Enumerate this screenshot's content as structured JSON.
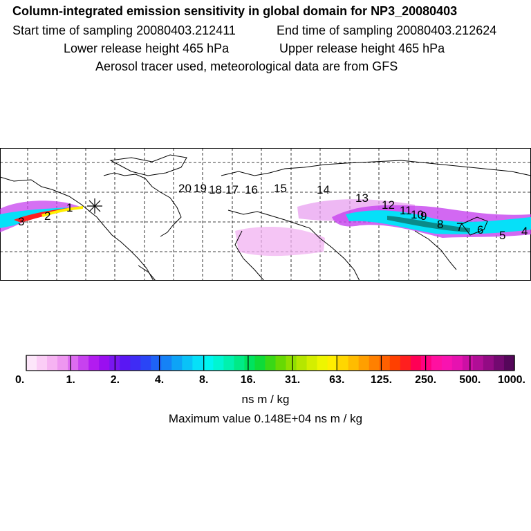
{
  "header": {
    "title": "Column-integrated emission sensitivity in global domain for NP3_20080403",
    "start_time": "Start time of sampling 20080403.212411",
    "end_time": "End time of sampling 20080403.212624",
    "lower_release": "Lower release height  465 hPa",
    "upper_release": "Upper release height  465 hPa",
    "aerosol_info": "Aerosol tracer used, meteorological data are from GFS"
  },
  "map": {
    "release_marker": "release-point-asterisk",
    "day_labels": [
      "1",
      "2",
      "3",
      "4",
      "5",
      "6",
      "7",
      "8",
      "9",
      "10",
      "11",
      "12",
      "13",
      "14",
      "15",
      "16",
      "17",
      "18",
      "19",
      "20"
    ]
  },
  "colorbar": {
    "tick_labels": [
      "0.",
      "1.",
      "2.",
      "4.",
      "8.",
      "16.",
      "31.",
      "63.",
      "125.",
      "250.",
      "500.",
      "1000."
    ],
    "colors": [
      "#fde6fa",
      "#fbcdf6",
      "#f6b3f2",
      "#ee97f0",
      "#dd6cf0",
      "#c742ef",
      "#b21cf0",
      "#9a0ff0",
      "#7a16f0",
      "#5a17f3",
      "#3f2cf5",
      "#2a45f6",
      "#1e63f6",
      "#1582f6",
      "#0ea3f6",
      "#0ac2f7",
      "#06e0f8",
      "#00f5f1",
      "#00f5d2",
      "#00f1ae",
      "#00ea87",
      "#00e35e",
      "#0edb38",
      "#39d816",
      "#67d903",
      "#90df00",
      "#b5e600",
      "#d4ee00",
      "#eef500",
      "#ffee00",
      "#ffd700",
      "#ffbc00",
      "#ff9f00",
      "#ff8000",
      "#ff6000",
      "#ff4000",
      "#ff1f1f",
      "#ff0055",
      "#ff0080",
      "#ff10a0",
      "#f813b0",
      "#e612b0",
      "#cc10a5",
      "#b00e96",
      "#930b84",
      "#730970",
      "#55075a"
    ],
    "units": "ns m / kg",
    "max_value": "Maximum value  0.148E+04 ns m / kg"
  },
  "colors": {
    "land_outline": "#000000",
    "grid": "#000000"
  }
}
